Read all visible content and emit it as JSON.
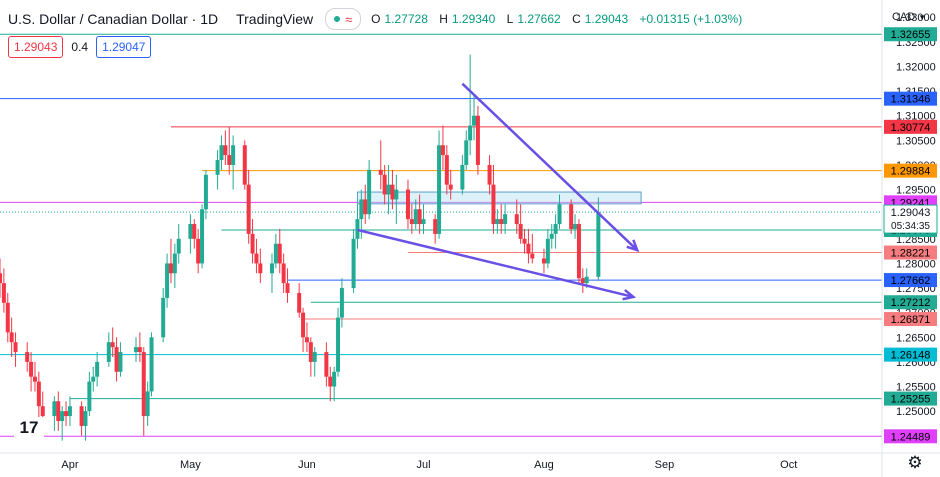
{
  "header": {
    "symbol": "U.S. Dollar / Canadian Dollar",
    "interval": "1D",
    "brand": "TradingView",
    "ohlc": [
      {
        "key": "O",
        "value": "1.27728"
      },
      {
        "key": "H",
        "value": "1.29340"
      },
      {
        "key": "L",
        "value": "1.27662"
      },
      {
        "key": "C",
        "value": "1.29043"
      }
    ],
    "change": "+0.01315 (+1.03%)"
  },
  "trade": {
    "sell": "1.29043",
    "spread": "0.4",
    "buy": "1.29047"
  },
  "currency_selector": "CAD",
  "colors": {
    "up": "#22ab94",
    "down": "#f23645",
    "pattern_lines": "#6a4fe6",
    "background": "#ffffff"
  },
  "chart_data": {
    "type": "candlestick",
    "y_axis": {
      "ticks": [
        1.25,
        1.255,
        1.26,
        1.265,
        1.27,
        1.275,
        1.28,
        1.285,
        1.29,
        1.295,
        1.3,
        1.305,
        1.31,
        1.315,
        1.32,
        1.325,
        1.33
      ],
      "tick_labels": [
        "1.25000",
        "1.25500",
        "1.26000",
        "1.26500",
        "1.27000",
        "1.27500",
        "1.28000",
        "1.28500",
        "1.29000",
        "1.29500",
        "1.30000",
        "1.30500",
        "1.31000",
        "1.31500",
        "1.32000",
        "1.32500",
        "1.33000"
      ],
      "range": [
        1.2415,
        1.3335
      ]
    },
    "x_axis": {
      "labels": [
        {
          "text": "Apr",
          "date": "2022-04-01"
        },
        {
          "text": "May",
          "date": "2022-05-02"
        },
        {
          "text": "Jun",
          "date": "2022-06-01"
        },
        {
          "text": "Jul",
          "date": "2022-07-01"
        },
        {
          "text": "Aug",
          "date": "2022-08-01"
        },
        {
          "text": "Sep",
          "date": "2022-09-01"
        },
        {
          "text": "Oct",
          "date": "2022-10-03"
        }
      ],
      "range": [
        "2022-03-14",
        "2022-10-27"
      ]
    },
    "last_price": 1.29043,
    "countdown": "05:34:35",
    "grid": false,
    "levels": [
      {
        "value": 1.32655,
        "label": "1.32655",
        "color": "#22ab94",
        "from": "2022-03-14"
      },
      {
        "value": 1.31346,
        "label": "1.31346",
        "color": "#2962ff",
        "from": "2022-03-14"
      },
      {
        "value": 1.30774,
        "label": "1.30774",
        "color": "#f23645",
        "from": "2022-04-27"
      },
      {
        "value": 1.29884,
        "label": "1.29884",
        "color": "#ff9800",
        "from": "2022-05-05"
      },
      {
        "value": 1.29241,
        "label": "1.29241",
        "color": "#e040fb",
        "from": "2022-03-14"
      },
      {
        "value": 1.28679,
        "label": "1.28679",
        "color": "#22ab94",
        "from": "2022-05-10"
      },
      {
        "value": 1.28221,
        "label": "1.28221",
        "color": "#f77c80",
        "from": "2022-06-27"
      },
      {
        "value": 1.27662,
        "label": "1.27662",
        "color": "#2962ff",
        "from": "2022-05-27"
      },
      {
        "value": 1.27212,
        "label": "1.27212",
        "color": "#22ab94",
        "from": "2022-06-02"
      },
      {
        "value": 1.26871,
        "label": "1.26871",
        "color": "#f77c80",
        "from": "2022-05-31"
      },
      {
        "value": 1.26148,
        "label": "1.26148",
        "color": "#00bcd4",
        "from": "2022-03-14"
      },
      {
        "value": 1.25255,
        "label": "1.25255",
        "color": "#22ab94",
        "from": "2022-04-01"
      },
      {
        "value": 1.24489,
        "label": "1.24489",
        "color": "#e040fb",
        "from": "2022-03-14"
      }
    ],
    "zone": {
      "from": "2022-06-14",
      "to": "2022-08-26",
      "low": 1.2921,
      "high": 1.2945
    },
    "trendlines": [
      {
        "start": {
          "date": "2022-07-11",
          "value": 1.3165
        },
        "end": {
          "date": "2022-08-25",
          "value": 1.2827
        }
      },
      {
        "start": {
          "date": "2022-06-14",
          "value": 1.2868
        },
        "end": {
          "date": "2022-08-24",
          "value": 1.2732
        }
      }
    ],
    "candles": [
      {
        "d": "2022-03-14",
        "o": 1.278,
        "h": 1.281,
        "l": 1.273,
        "c": 1.276
      },
      {
        "d": "2022-03-15",
        "o": 1.276,
        "h": 1.279,
        "l": 1.27,
        "c": 1.272
      },
      {
        "d": "2022-03-16",
        "o": 1.272,
        "h": 1.274,
        "l": 1.264,
        "c": 1.266
      },
      {
        "d": "2022-03-17",
        "o": 1.266,
        "h": 1.269,
        "l": 1.261,
        "c": 1.264
      },
      {
        "d": "2022-03-18",
        "o": 1.264,
        "h": 1.266,
        "l": 1.259,
        "c": 1.262
      },
      {
        "d": "2022-03-21",
        "o": 1.262,
        "h": 1.264,
        "l": 1.258,
        "c": 1.26
      },
      {
        "d": "2022-03-22",
        "o": 1.26,
        "h": 1.262,
        "l": 1.254,
        "c": 1.257
      },
      {
        "d": "2022-03-23",
        "o": 1.257,
        "h": 1.26,
        "l": 1.254,
        "c": 1.256
      },
      {
        "d": "2022-03-24",
        "o": 1.256,
        "h": 1.258,
        "l": 1.248,
        "c": 1.251
      },
      {
        "d": "2022-03-25",
        "o": 1.251,
        "h": 1.254,
        "l": 1.247,
        "c": 1.249
      },
      {
        "d": "2022-03-28",
        "o": 1.249,
        "h": 1.253,
        "l": 1.246,
        "c": 1.252
      },
      {
        "d": "2022-03-29",
        "o": 1.252,
        "h": 1.254,
        "l": 1.246,
        "c": 1.248
      },
      {
        "d": "2022-03-30",
        "o": 1.248,
        "h": 1.251,
        "l": 1.244,
        "c": 1.25
      },
      {
        "d": "2022-03-31",
        "o": 1.25,
        "h": 1.252,
        "l": 1.247,
        "c": 1.249
      },
      {
        "d": "2022-04-01",
        "o": 1.249,
        "h": 1.253,
        "l": 1.247,
        "c": 1.251
      },
      {
        "d": "2022-04-04",
        "o": 1.251,
        "h": 1.252,
        "l": 1.245,
        "c": 1.247
      },
      {
        "d": "2022-04-05",
        "o": 1.247,
        "h": 1.251,
        "l": 1.244,
        "c": 1.25
      },
      {
        "d": "2022-04-06",
        "o": 1.25,
        "h": 1.258,
        "l": 1.249,
        "c": 1.256
      },
      {
        "d": "2022-04-07",
        "o": 1.256,
        "h": 1.259,
        "l": 1.254,
        "c": 1.257
      },
      {
        "d": "2022-04-08",
        "o": 1.257,
        "h": 1.262,
        "l": 1.255,
        "c": 1.26
      },
      {
        "d": "2022-04-11",
        "o": 1.26,
        "h": 1.266,
        "l": 1.259,
        "c": 1.264
      },
      {
        "d": "2022-04-12",
        "o": 1.264,
        "h": 1.267,
        "l": 1.261,
        "c": 1.263
      },
      {
        "d": "2022-04-13",
        "o": 1.263,
        "h": 1.265,
        "l": 1.256,
        "c": 1.258
      },
      {
        "d": "2022-04-14",
        "o": 1.258,
        "h": 1.264,
        "l": 1.257,
        "c": 1.262
      },
      {
        "d": "2022-04-18",
        "o": 1.262,
        "h": 1.265,
        "l": 1.26,
        "c": 1.263
      },
      {
        "d": "2022-04-19",
        "o": 1.263,
        "h": 1.266,
        "l": 1.26,
        "c": 1.262
      },
      {
        "d": "2022-04-20",
        "o": 1.262,
        "h": 1.263,
        "l": 1.245,
        "c": 1.249
      },
      {
        "d": "2022-04-21",
        "o": 1.249,
        "h": 1.256,
        "l": 1.247,
        "c": 1.254
      },
      {
        "d": "2022-04-22",
        "o": 1.254,
        "h": 1.266,
        "l": 1.253,
        "c": 1.265
      },
      {
        "d": "2022-04-25",
        "o": 1.265,
        "h": 1.275,
        "l": 1.264,
        "c": 1.273
      },
      {
        "d": "2022-04-26",
        "o": 1.273,
        "h": 1.282,
        "l": 1.271,
        "c": 1.28
      },
      {
        "d": "2022-04-27",
        "o": 1.28,
        "h": 1.285,
        "l": 1.276,
        "c": 1.278
      },
      {
        "d": "2022-04-28",
        "o": 1.278,
        "h": 1.284,
        "l": 1.275,
        "c": 1.282
      },
      {
        "d": "2022-04-29",
        "o": 1.282,
        "h": 1.288,
        "l": 1.28,
        "c": 1.285
      },
      {
        "d": "2022-05-02",
        "o": 1.285,
        "h": 1.29,
        "l": 1.282,
        "c": 1.288
      },
      {
        "d": "2022-05-03",
        "o": 1.288,
        "h": 1.289,
        "l": 1.283,
        "c": 1.285
      },
      {
        "d": "2022-05-04",
        "o": 1.285,
        "h": 1.287,
        "l": 1.278,
        "c": 1.28
      },
      {
        "d": "2022-05-05",
        "o": 1.28,
        "h": 1.292,
        "l": 1.279,
        "c": 1.291
      },
      {
        "d": "2022-05-06",
        "o": 1.291,
        "h": 1.299,
        "l": 1.289,
        "c": 1.298
      },
      {
        "d": "2022-05-09",
        "o": 1.298,
        "h": 1.303,
        "l": 1.295,
        "c": 1.301
      },
      {
        "d": "2022-05-10",
        "o": 1.301,
        "h": 1.306,
        "l": 1.299,
        "c": 1.304
      },
      {
        "d": "2022-05-11",
        "o": 1.304,
        "h": 1.307,
        "l": 1.3,
        "c": 1.302
      },
      {
        "d": "2022-05-12",
        "o": 1.302,
        "h": 1.3077,
        "l": 1.298,
        "c": 1.3
      },
      {
        "d": "2022-05-13",
        "o": 1.3,
        "h": 1.306,
        "l": 1.295,
        "c": 1.304
      },
      {
        "d": "2022-05-16",
        "o": 1.304,
        "h": 1.305,
        "l": 1.295,
        "c": 1.296
      },
      {
        "d": "2022-05-17",
        "o": 1.296,
        "h": 1.299,
        "l": 1.284,
        "c": 1.286
      },
      {
        "d": "2022-05-18",
        "o": 1.286,
        "h": 1.289,
        "l": 1.28,
        "c": 1.282
      },
      {
        "d": "2022-05-19",
        "o": 1.282,
        "h": 1.285,
        "l": 1.278,
        "c": 1.28
      },
      {
        "d": "2022-05-20",
        "o": 1.28,
        "h": 1.283,
        "l": 1.276,
        "c": 1.278
      },
      {
        "d": "2022-05-23",
        "o": 1.278,
        "h": 1.282,
        "l": 1.274,
        "c": 1.28
      },
      {
        "d": "2022-05-24",
        "o": 1.28,
        "h": 1.286,
        "l": 1.279,
        "c": 1.284
      },
      {
        "d": "2022-05-25",
        "o": 1.284,
        "h": 1.287,
        "l": 1.278,
        "c": 1.28
      },
      {
        "d": "2022-05-26",
        "o": 1.28,
        "h": 1.282,
        "l": 1.274,
        "c": 1.276
      },
      {
        "d": "2022-05-27",
        "o": 1.276,
        "h": 1.279,
        "l": 1.272,
        "c": 1.274
      },
      {
        "d": "2022-05-30",
        "o": 1.274,
        "h": 1.276,
        "l": 1.269,
        "c": 1.27
      },
      {
        "d": "2022-05-31",
        "o": 1.27,
        "h": 1.271,
        "l": 1.262,
        "c": 1.265
      },
      {
        "d": "2022-06-01",
        "o": 1.265,
        "h": 1.268,
        "l": 1.262,
        "c": 1.264
      },
      {
        "d": "2022-06-02",
        "o": 1.264,
        "h": 1.265,
        "l": 1.257,
        "c": 1.26
      },
      {
        "d": "2022-06-03",
        "o": 1.26,
        "h": 1.263,
        "l": 1.257,
        "c": 1.262
      },
      {
        "d": "2022-06-06",
        "o": 1.262,
        "h": 1.264,
        "l": 1.255,
        "c": 1.257
      },
      {
        "d": "2022-06-07",
        "o": 1.257,
        "h": 1.259,
        "l": 1.252,
        "c": 1.255
      },
      {
        "d": "2022-06-08",
        "o": 1.255,
        "h": 1.259,
        "l": 1.252,
        "c": 1.258
      },
      {
        "d": "2022-06-09",
        "o": 1.258,
        "h": 1.271,
        "l": 1.257,
        "c": 1.269
      },
      {
        "d": "2022-06-10",
        "o": 1.269,
        "h": 1.277,
        "l": 1.267,
        "c": 1.275
      },
      {
        "d": "2022-06-13",
        "o": 1.275,
        "h": 1.287,
        "l": 1.274,
        "c": 1.285
      },
      {
        "d": "2022-06-14",
        "o": 1.285,
        "h": 1.292,
        "l": 1.283,
        "c": 1.289
      },
      {
        "d": "2022-06-15",
        "o": 1.289,
        "h": 1.295,
        "l": 1.285,
        "c": 1.293
      },
      {
        "d": "2022-06-16",
        "o": 1.293,
        "h": 1.296,
        "l": 1.288,
        "c": 1.29
      },
      {
        "d": "2022-06-17",
        "o": 1.29,
        "h": 1.301,
        "l": 1.289,
        "c": 1.299
      },
      {
        "d": "2022-06-20",
        "o": 1.299,
        "h": 1.305,
        "l": 1.295,
        "c": 1.298
      },
      {
        "d": "2022-06-21",
        "o": 1.298,
        "h": 1.3,
        "l": 1.292,
        "c": 1.294
      },
      {
        "d": "2022-06-22",
        "o": 1.294,
        "h": 1.3,
        "l": 1.29,
        "c": 1.296
      },
      {
        "d": "2022-06-23",
        "o": 1.296,
        "h": 1.299,
        "l": 1.291,
        "c": 1.293
      },
      {
        "d": "2022-06-24",
        "o": 1.293,
        "h": 1.298,
        "l": 1.288,
        "c": 1.295
      },
      {
        "d": "2022-06-27",
        "o": 1.295,
        "h": 1.297,
        "l": 1.287,
        "c": 1.289
      },
      {
        "d": "2022-06-28",
        "o": 1.289,
        "h": 1.292,
        "l": 1.286,
        "c": 1.288
      },
      {
        "d": "2022-06-29",
        "o": 1.288,
        "h": 1.293,
        "l": 1.287,
        "c": 1.291
      },
      {
        "d": "2022-06-30",
        "o": 1.291,
        "h": 1.294,
        "l": 1.286,
        "c": 1.288
      },
      {
        "d": "2022-07-01",
        "o": 1.288,
        "h": 1.292,
        "l": 1.286,
        "c": 1.289
      },
      {
        "d": "2022-07-04",
        "o": 1.289,
        "h": 1.29,
        "l": 1.284,
        "c": 1.286
      },
      {
        "d": "2022-07-05",
        "o": 1.286,
        "h": 1.307,
        "l": 1.285,
        "c": 1.304
      },
      {
        "d": "2022-07-06",
        "o": 1.304,
        "h": 1.308,
        "l": 1.299,
        "c": 1.302
      },
      {
        "d": "2022-07-07",
        "o": 1.302,
        "h": 1.304,
        "l": 1.294,
        "c": 1.296
      },
      {
        "d": "2022-07-08",
        "o": 1.296,
        "h": 1.299,
        "l": 1.293,
        "c": 1.295
      },
      {
        "d": "2022-07-11",
        "o": 1.295,
        "h": 1.302,
        "l": 1.294,
        "c": 1.3
      },
      {
        "d": "2022-07-12",
        "o": 1.3,
        "h": 1.307,
        "l": 1.299,
        "c": 1.305
      },
      {
        "d": "2022-07-13",
        "o": 1.305,
        "h": 1.3224,
        "l": 1.302,
        "c": 1.308
      },
      {
        "d": "2022-07-14",
        "o": 1.308,
        "h": 1.314,
        "l": 1.305,
        "c": 1.31
      },
      {
        "d": "2022-07-15",
        "o": 1.31,
        "h": 1.312,
        "l": 1.298,
        "c": 1.3
      },
      {
        "d": "2022-07-18",
        "o": 1.3,
        "h": 1.302,
        "l": 1.294,
        "c": 1.296
      },
      {
        "d": "2022-07-19",
        "o": 1.296,
        "h": 1.3,
        "l": 1.286,
        "c": 1.288
      },
      {
        "d": "2022-07-20",
        "o": 1.288,
        "h": 1.291,
        "l": 1.286,
        "c": 1.289
      },
      {
        "d": "2022-07-21",
        "o": 1.289,
        "h": 1.292,
        "l": 1.286,
        "c": 1.288
      },
      {
        "d": "2022-07-22",
        "o": 1.288,
        "h": 1.292,
        "l": 1.286,
        "c": 1.29
      },
      {
        "d": "2022-07-25",
        "o": 1.29,
        "h": 1.293,
        "l": 1.286,
        "c": 1.288
      },
      {
        "d": "2022-07-26",
        "o": 1.288,
        "h": 1.292,
        "l": 1.284,
        "c": 1.285
      },
      {
        "d": "2022-07-27",
        "o": 1.285,
        "h": 1.287,
        "l": 1.282,
        "c": 1.284
      },
      {
        "d": "2022-07-28",
        "o": 1.284,
        "h": 1.287,
        "l": 1.28,
        "c": 1.282
      },
      {
        "d": "2022-07-29",
        "o": 1.282,
        "h": 1.286,
        "l": 1.28,
        "c": 1.281
      },
      {
        "d": "2022-08-01",
        "o": 1.281,
        "h": 1.283,
        "l": 1.278,
        "c": 1.28
      },
      {
        "d": "2022-08-02",
        "o": 1.28,
        "h": 1.287,
        "l": 1.279,
        "c": 1.285
      },
      {
        "d": "2022-08-03",
        "o": 1.285,
        "h": 1.288,
        "l": 1.283,
        "c": 1.286
      },
      {
        "d": "2022-08-04",
        "o": 1.286,
        "h": 1.29,
        "l": 1.283,
        "c": 1.288
      },
      {
        "d": "2022-08-05",
        "o": 1.288,
        "h": 1.294,
        "l": 1.287,
        "c": 1.292
      },
      {
        "d": "2022-08-08",
        "o": 1.292,
        "h": 1.293,
        "l": 1.286,
        "c": 1.287
      },
      {
        "d": "2022-08-09",
        "o": 1.287,
        "h": 1.29,
        "l": 1.285,
        "c": 1.288
      },
      {
        "d": "2022-08-10",
        "o": 1.288,
        "h": 1.289,
        "l": 1.276,
        "c": 1.277
      },
      {
        "d": "2022-08-11",
        "o": 1.277,
        "h": 1.279,
        "l": 1.274,
        "c": 1.276
      },
      {
        "d": "2022-08-12",
        "o": 1.276,
        "h": 1.279,
        "l": 1.275,
        "c": 1.2773
      },
      {
        "d": "2022-08-15",
        "o": 1.27728,
        "h": 1.2934,
        "l": 1.27662,
        "c": 1.29043
      }
    ]
  }
}
